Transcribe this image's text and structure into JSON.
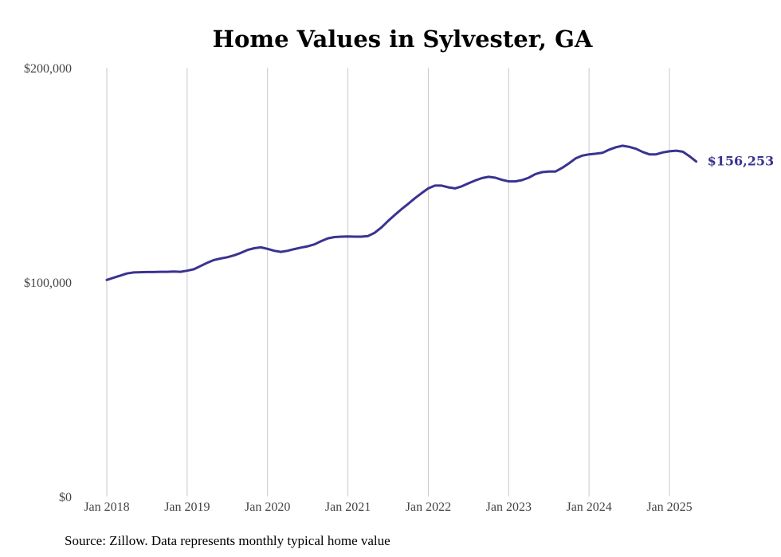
{
  "chart_data": {
    "type": "line",
    "title": "Home Values in Sylvester, GA",
    "xlabel": "",
    "ylabel": "",
    "ylim": [
      0,
      200000
    ],
    "yticks": [
      {
        "value": 0,
        "label": "$0"
      },
      {
        "value": 100000,
        "label": "$100,000"
      },
      {
        "value": 200000,
        "label": "$200,000"
      }
    ],
    "xticks": [
      {
        "value": 0,
        "label": "Jan 2018"
      },
      {
        "value": 12,
        "label": "Jan 2019"
      },
      {
        "value": 24,
        "label": "Jan 2020"
      },
      {
        "value": 36,
        "label": "Jan 2021"
      },
      {
        "value": 48,
        "label": "Jan 2022"
      },
      {
        "value": 60,
        "label": "Jan 2023"
      },
      {
        "value": 72,
        "label": "Jan 2024"
      },
      {
        "value": 84,
        "label": "Jan 2025"
      }
    ],
    "x_unit": "months since Jan 2018",
    "grid": "vertical",
    "legend": "none",
    "series": [
      {
        "color": "#3a3391",
        "end_label": "$156,253",
        "values": [
          101000,
          102000,
          103000,
          104000,
          104500,
          104600,
          104700,
          104700,
          104800,
          104800,
          104900,
          104800,
          105300,
          106000,
          107500,
          109000,
          110300,
          111000,
          111600,
          112500,
          113600,
          115000,
          115800,
          116200,
          115500,
          114600,
          114100,
          114600,
          115400,
          116100,
          116700,
          117600,
          119100,
          120400,
          121000,
          121200,
          121300,
          121200,
          121200,
          121500,
          123000,
          125500,
          128500,
          131300,
          134000,
          136500,
          139100,
          141500,
          143700,
          145000,
          145000,
          144200,
          143700,
          144700,
          146100,
          147400,
          148500,
          149100,
          148700,
          147700,
          147000,
          147000,
          147600,
          148700,
          150400,
          151300,
          151600,
          151600,
          153300,
          155400,
          157700,
          159000,
          159600,
          159900,
          160300,
          161800,
          162900,
          163600,
          163100,
          162200,
          160700,
          159600,
          159600,
          160500,
          161000,
          161300,
          160800,
          158700,
          156253
        ]
      }
    ]
  },
  "source": {
    "text": "Source: Zillow. Data represents monthly typical home value"
  },
  "colors": {
    "line": "#3a3391",
    "grid": "#c8c8c8",
    "axis_text": "#444444"
  }
}
